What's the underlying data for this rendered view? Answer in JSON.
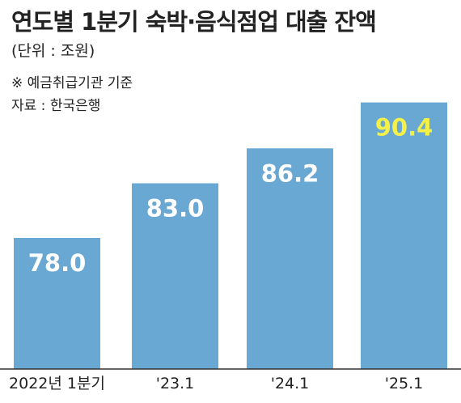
{
  "title": "연도별 1분기 숙박·음식점업 대출 잔액",
  "unit_note": "(단위 : 조원)",
  "footnote": "※ 예금취급기관 기준",
  "source": "자료 : 한국은행",
  "colors": {
    "bar": "#6aa8d4",
    "label": "#ffffff",
    "highlight_label": "#f3f04a",
    "baseline": "#333333"
  },
  "chart_data": {
    "type": "bar",
    "categories": [
      "2022년 1분기",
      "'23.1",
      "'24.1",
      "'25.1"
    ],
    "values": [
      78.0,
      83.0,
      86.2,
      90.4
    ],
    "value_labels": [
      "78.0",
      "83.0",
      "86.2",
      "90.4"
    ],
    "highlight_index": 3,
    "title": "연도별 1분기 숙박·음식점업 대출 잔액",
    "xlabel": "",
    "ylabel": "",
    "ylim": [
      66,
      93
    ],
    "grid": false
  }
}
